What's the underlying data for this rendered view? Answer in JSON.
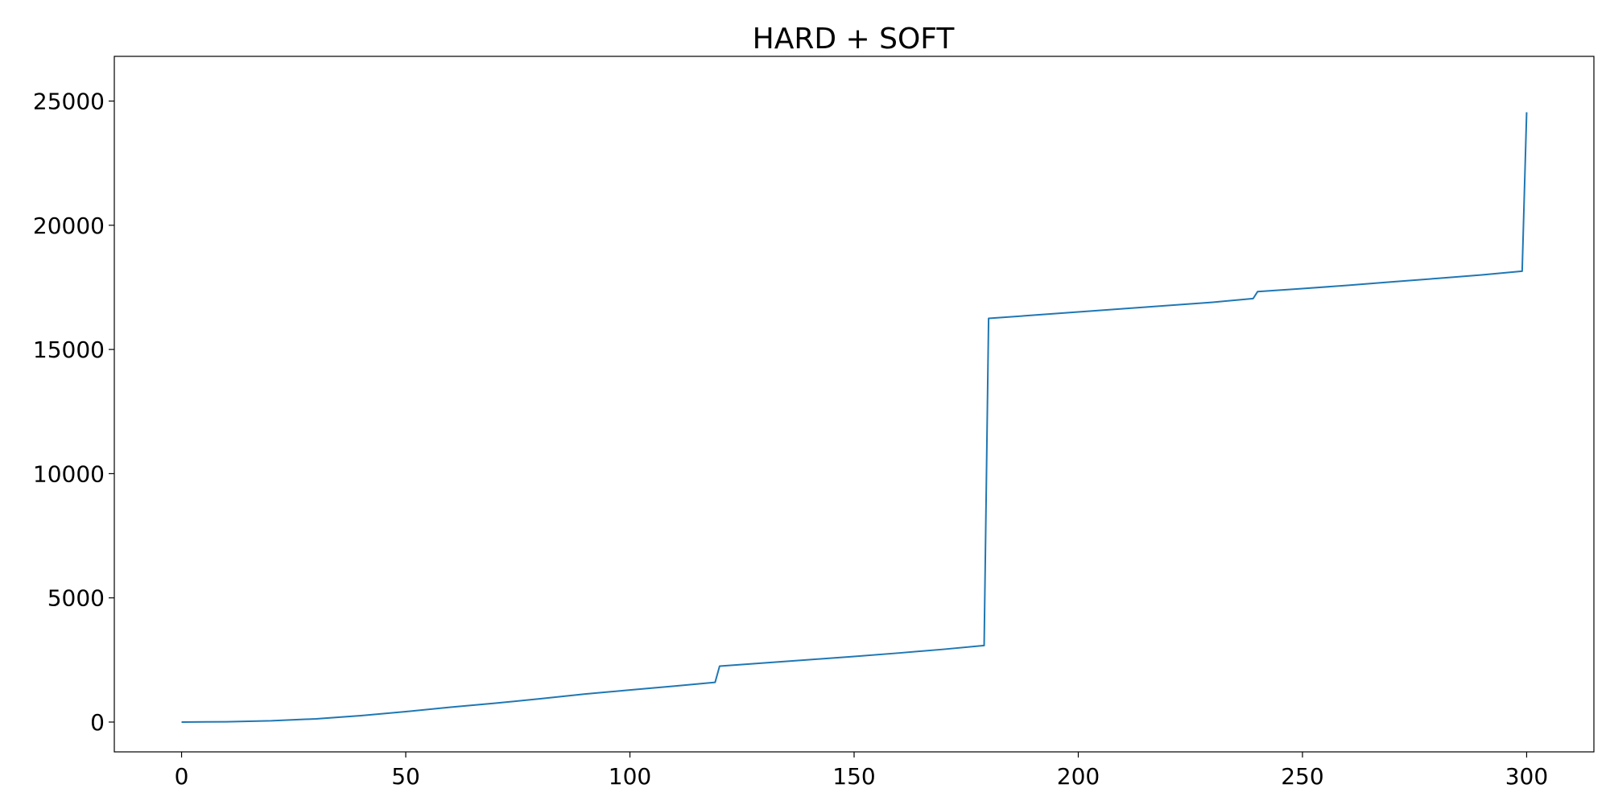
{
  "chart_data": {
    "type": "line",
    "title": "HARD + SOFT",
    "xlabel": "",
    "ylabel": "",
    "xlim": [
      -15,
      315
    ],
    "ylim": [
      -1200,
      26800
    ],
    "x_ticks": [
      0,
      50,
      100,
      150,
      200,
      250,
      300
    ],
    "y_ticks": [
      0,
      5000,
      10000,
      15000,
      20000,
      25000
    ],
    "grid": false,
    "series": [
      {
        "color": "#1f77b4",
        "x": [
          0,
          10,
          20,
          30,
          40,
          50,
          60,
          70,
          80,
          90,
          100,
          110,
          119,
          120,
          130,
          140,
          150,
          160,
          170,
          179,
          180,
          190,
          200,
          210,
          220,
          230,
          239,
          240,
          250,
          260,
          270,
          280,
          290,
          299,
          300
        ],
        "y": [
          0,
          10,
          50,
          130,
          260,
          420,
          600,
          760,
          940,
          1130,
          1290,
          1450,
          1600,
          2250,
          2380,
          2510,
          2640,
          2780,
          2930,
          3080,
          16250,
          16380,
          16510,
          16640,
          16770,
          16900,
          17050,
          17330,
          17450,
          17580,
          17720,
          17860,
          18000,
          18150,
          24550
        ]
      }
    ]
  }
}
